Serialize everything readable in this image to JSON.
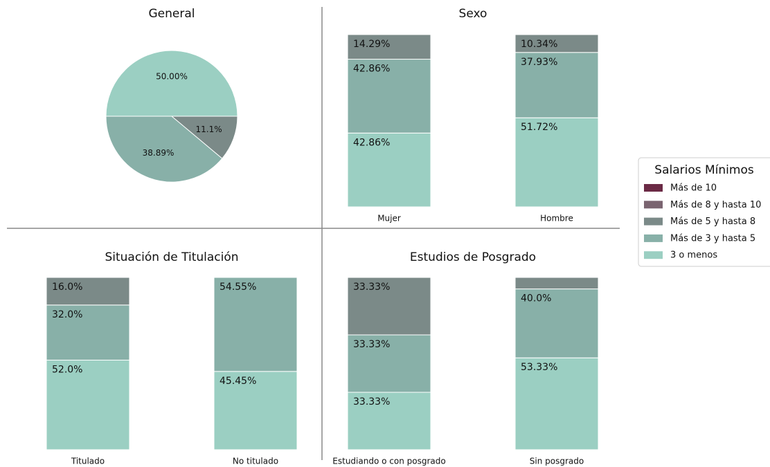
{
  "chart_data": [
    {
      "type": "pie",
      "title": "General",
      "values": [
        50,
        38.89,
        11.1
      ],
      "value_labels": [
        "50.00%",
        "38.89%",
        "11.1%"
      ],
      "colors": [
        "#9bcfc2",
        "#88b0a8",
        "#7b8a88"
      ]
    },
    {
      "type": "bar",
      "stacked": true,
      "title": "Sexo",
      "categories": [
        "Mujer",
        "Hombre"
      ],
      "ylim": [
        0,
        100
      ],
      "series": [
        {
          "name": "3 o menos",
          "color": "#9bcfc2",
          "values": [
            42.86,
            51.72
          ],
          "value_labels": [
            "42.86%",
            "51.72%"
          ]
        },
        {
          "name": "Más de 3 y hasta 5",
          "color": "#88b0a8",
          "values": [
            42.86,
            37.93
          ],
          "value_labels": [
            "42.86%",
            "37.93%"
          ]
        },
        {
          "name": "Más de 5 y hasta 8",
          "color": "#7b8a88",
          "values": [
            14.29,
            10.34
          ],
          "value_labels": [
            "14.29%",
            "10.34%"
          ]
        }
      ]
    },
    {
      "type": "bar",
      "stacked": true,
      "title": "Situación de Titulación",
      "categories": [
        "Titulado",
        "No titulado"
      ],
      "ylim": [
        0,
        100
      ],
      "series": [
        {
          "name": "3 o menos",
          "color": "#9bcfc2",
          "values": [
            52.0,
            45.45
          ],
          "value_labels": [
            "52.0%",
            "45.45%"
          ]
        },
        {
          "name": "Más de 3 y hasta 5",
          "color": "#88b0a8",
          "values": [
            32.0,
            54.55
          ],
          "value_labels": [
            "32.0%",
            "54.55%"
          ]
        },
        {
          "name": "Más de 5 y hasta 8",
          "color": "#7b8a88",
          "values": [
            16.0,
            0
          ],
          "value_labels": [
            "16.0%",
            null
          ]
        }
      ]
    },
    {
      "type": "bar",
      "stacked": true,
      "title": "Estudios de Posgrado",
      "categories": [
        "Estudiando o con posgrado",
        "Sin posgrado"
      ],
      "ylim": [
        0,
        100
      ],
      "series": [
        {
          "name": "3 o menos",
          "color": "#9bcfc2",
          "values": [
            33.33,
            53.33
          ],
          "value_labels": [
            "33.33%",
            "53.33%"
          ]
        },
        {
          "name": "Más de 3 y hasta 5",
          "color": "#88b0a8",
          "values": [
            33.33,
            40.0
          ],
          "value_labels": [
            "33.33%",
            "40.0%"
          ]
        },
        {
          "name": "Más de 5 y hasta 8",
          "color": "#7b8a88",
          "values": [
            33.33,
            6.67
          ],
          "value_labels": [
            "33.33%",
            null
          ]
        }
      ]
    }
  ],
  "legend": {
    "title": "Salarios Mínimos",
    "items": [
      {
        "name": "Más de 10",
        "color": "#6b2a45"
      },
      {
        "name": "Más de 8 y hasta 10",
        "color": "#7a6470"
      },
      {
        "name": "Más de 5 y hasta 8",
        "color": "#7b8a88"
      },
      {
        "name": "Más de 3 y hasta 5",
        "color": "#88b0a8"
      },
      {
        "name": "3 o menos",
        "color": "#9bcfc2"
      }
    ]
  }
}
